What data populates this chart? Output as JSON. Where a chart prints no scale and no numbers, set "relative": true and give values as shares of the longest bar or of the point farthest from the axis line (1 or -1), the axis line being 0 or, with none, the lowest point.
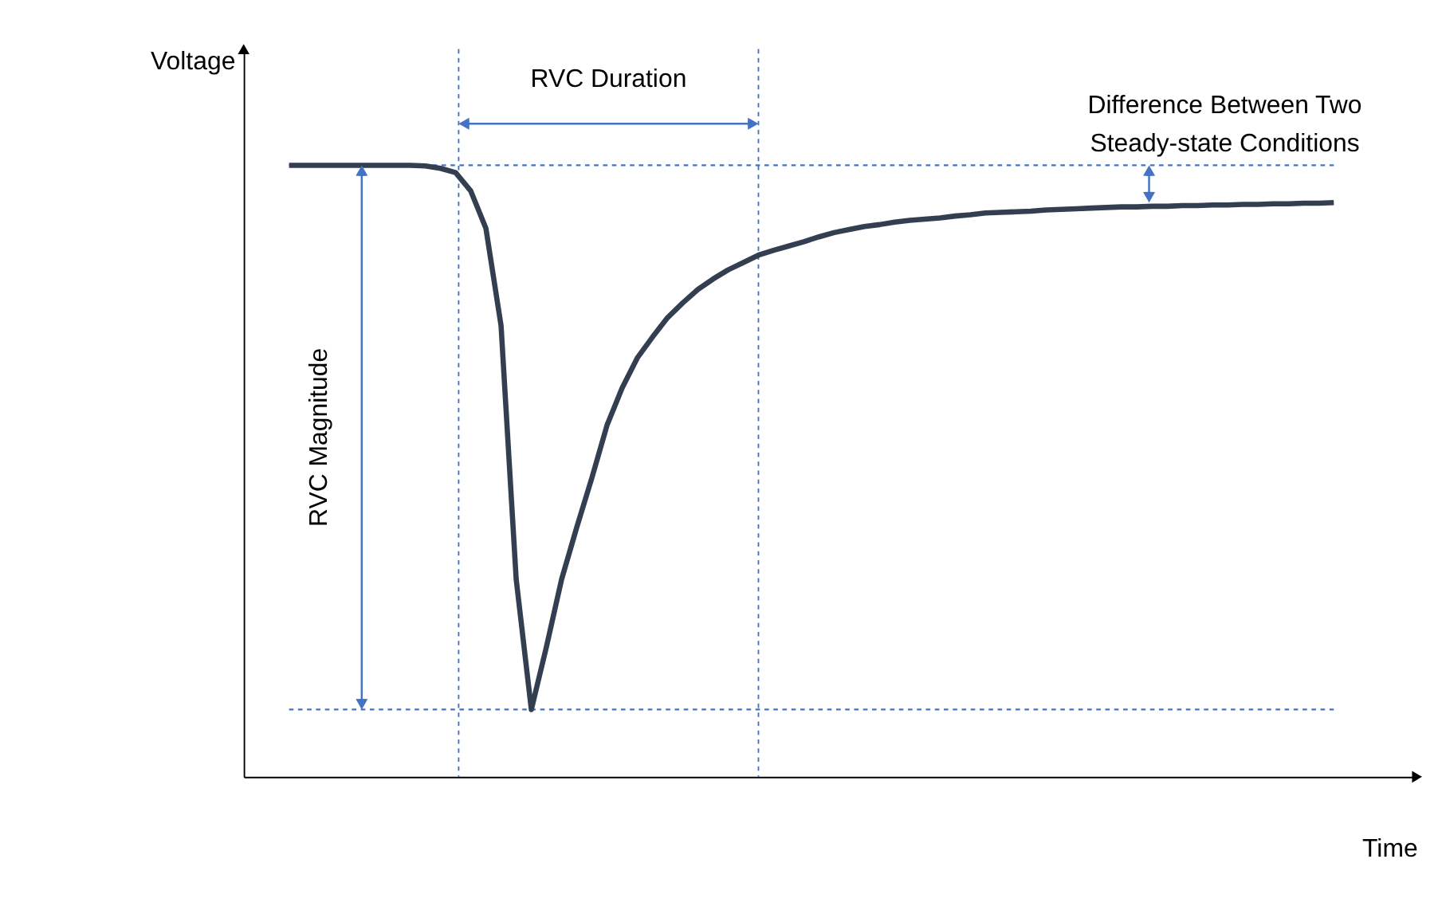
{
  "chart_data": {
    "type": "line",
    "relative": true,
    "xlabel": "Time",
    "ylabel": "Voltage",
    "categories": [
      null,
      null,
      null,
      null,
      null,
      null,
      null,
      null,
      null,
      null,
      null,
      null,
      null,
      null,
      null,
      null,
      null,
      null,
      null,
      null,
      null,
      null,
      null,
      null,
      null,
      null,
      null,
      null,
      null,
      null,
      null,
      null,
      null,
      null,
      null,
      null,
      null,
      null,
      null,
      null,
      null,
      null,
      null,
      null,
      null,
      null,
      null,
      null,
      null,
      null,
      null,
      null,
      null,
      null,
      null,
      null,
      null,
      null,
      null,
      null,
      null,
      null,
      null,
      null,
      null,
      null,
      null,
      null,
      null,
      null
    ],
    "series": [
      {
        "color": "#333f50",
        "values": [
          1.0,
          1.0,
          1.0,
          1.0,
          1.0,
          1.0,
          1.0,
          1.0,
          1.0,
          0.999,
          0.995,
          0.988,
          0.958,
          0.897,
          0.738,
          0.323,
          0.11,
          0.213,
          0.323,
          0.408,
          0.489,
          0.575,
          0.636,
          0.685,
          0.719,
          0.751,
          0.775,
          0.797,
          0.814,
          0.829,
          0.841,
          0.853,
          0.861,
          0.868,
          0.875,
          0.883,
          0.89,
          0.895,
          0.9,
          0.903,
          0.907,
          0.91,
          0.912,
          0.914,
          0.917,
          0.919,
          0.922,
          0.923,
          0.924,
          0.925,
          0.927,
          0.928,
          0.929,
          0.93,
          0.931,
          0.932,
          0.932,
          0.933,
          0.933,
          0.934,
          0.934,
          0.935,
          0.935,
          0.936,
          0.936,
          0.937,
          0.937,
          0.938,
          0.938,
          0.939
        ]
      }
    ],
    "annotations": [
      "RVC Duration",
      "Difference Between Two\nSteady-state Conditions",
      "RVC Magnitude"
    ],
    "grid": false,
    "marker": "none",
    "line_style": "solid"
  }
}
